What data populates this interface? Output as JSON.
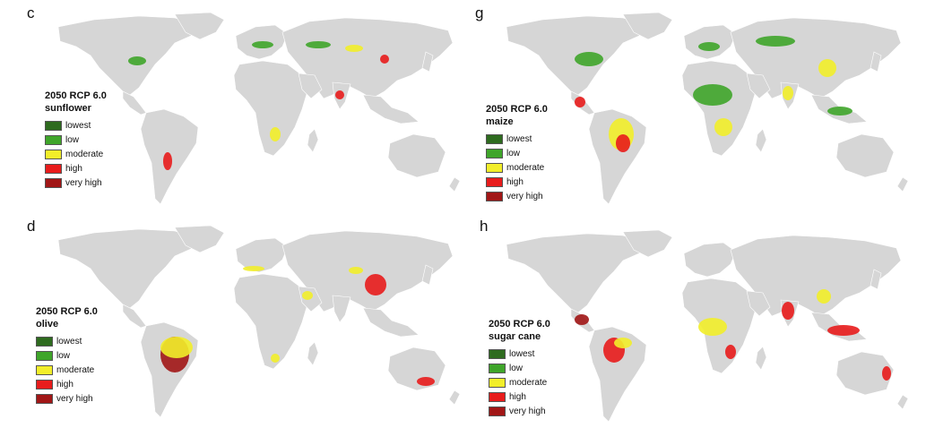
{
  "classes": [
    {
      "label": "lowest",
      "color": "#2e6b1f"
    },
    {
      "label": "low",
      "color": "#3fa52a"
    },
    {
      "label": "moderate",
      "color": "#f2ee2a"
    },
    {
      "label": "high",
      "color": "#e81c1c"
    },
    {
      "label": "very high",
      "color": "#a11616"
    }
  ],
  "land_color": "#d6d6d6",
  "border_color": "#ffffff",
  "panels": [
    {
      "id": "c",
      "letter": "c",
      "scenario": "2050 RCP 6.0",
      "crop": "sunflower",
      "hotspots": [
        "North America (northern plains)",
        "Eastern Europe / Russia",
        "Central Asia",
        "South Asia",
        "Southern Africa",
        "South America (Argentina)",
        "China"
      ]
    },
    {
      "id": "g",
      "letter": "g",
      "scenario": "2050 RCP 6.0",
      "crop": "maize",
      "hotspots": [
        "North America",
        "Central America",
        "South America",
        "Sub-Saharan Africa",
        "Europe / Russia",
        "India",
        "China",
        "Southeast Asia"
      ]
    },
    {
      "id": "d",
      "letter": "d",
      "scenario": "2050 RCP 6.0",
      "crop": "olive",
      "hotspots": [
        "Mediterranean",
        "Middle East",
        "China",
        "Brazil",
        "Argentina",
        "Southern Africa",
        "Australia"
      ]
    },
    {
      "id": "h",
      "letter": "h",
      "scenario": "2050 RCP 6.0",
      "crop": "sugar cane",
      "hotspots": [
        "Central America / Caribbean",
        "Brazil",
        "Sub-Saharan Africa",
        "India",
        "Southeast Asia",
        "Australia"
      ]
    }
  ]
}
